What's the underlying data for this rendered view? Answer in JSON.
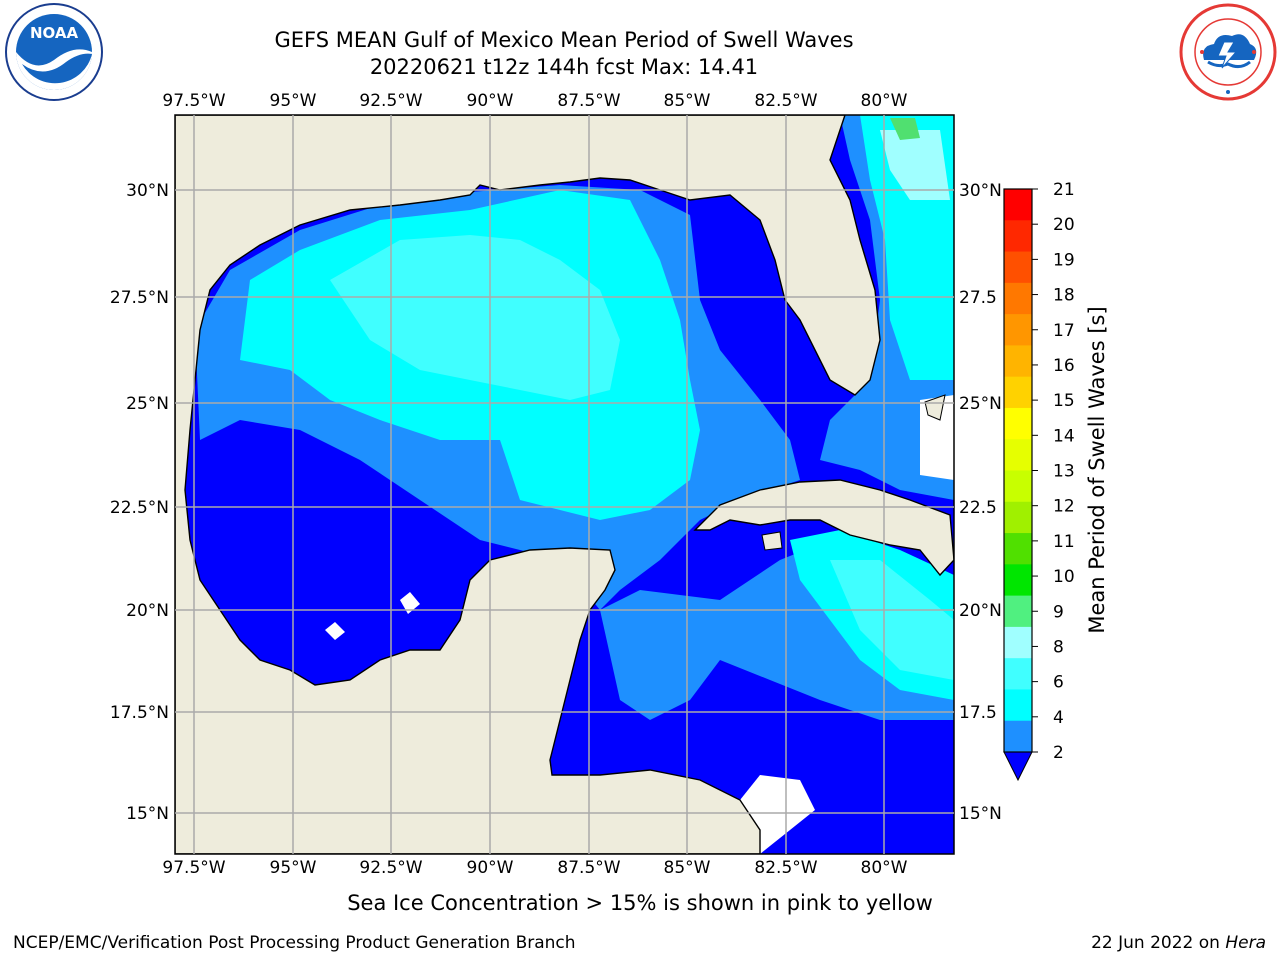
{
  "header": {
    "title_line1": "GEFS MEAN Gulf of Mexico Mean Period of Swell Waves",
    "title_line2": "20220621 t12z 144h fcst   Max: 14.41"
  },
  "logos": {
    "noaa_text": "NOAA",
    "noaa_ring": "NATIONAL OCEANIC AND ATMOSPHERIC ADMINISTRATION · U.S. DEPARTMENT OF COMMERCE",
    "nws_ring": "NATIONAL WEATHER SERVICE"
  },
  "map": {
    "lon_labels": [
      "97.5°W",
      "95°W",
      "92.5°W",
      "90°W",
      "87.5°W",
      "85°W",
      "82.5°W",
      "80°W"
    ],
    "lat_labels_left": [
      "30°N",
      "27.5°N",
      "25°N",
      "22.5°N",
      "20°N",
      "17.5°N",
      "15°N"
    ],
    "lat_labels_right": [
      "30°N",
      "27.5",
      "25°N",
      "22.5",
      "20°N",
      "17.5",
      "15°N"
    ],
    "land_color": "#eeecdc",
    "ocean_colors": {
      "2-4": "#0000ff",
      "4-6": "#1e90ff",
      "6-8": "#00ffff",
      "8-9": "#40ffff",
      "9-10": "#a0ffff",
      "10-11": "#50e070",
      "11-12": "#7ee03c"
    }
  },
  "colorbar": {
    "label": "Mean Period of Swell Waves [s]",
    "ticks": [
      "21",
      "20",
      "19",
      "18",
      "17",
      "16",
      "15",
      "14",
      "13",
      "12",
      "11",
      "10",
      "9",
      "8",
      "6",
      "4",
      "2"
    ],
    "colors": [
      "#ff0000",
      "#ff2800",
      "#ff5000",
      "#ff7800",
      "#ff9600",
      "#ffb400",
      "#ffd200",
      "#ffff00",
      "#e6ff00",
      "#c8ff00",
      "#a0f000",
      "#50e000",
      "#00e600",
      "#50f080",
      "#a0ffff",
      "#40ffff",
      "#00ffff",
      "#1e90ff"
    ],
    "extend_color": "#0000ff"
  },
  "notes": {
    "sea_ice": "Sea Ice Concentration > 15% is shown in pink to yellow",
    "credit": "NCEP/EMC/Verification Post Processing Product Generation Branch",
    "date": "22 Jun 2022 on ",
    "host": "Hera"
  }
}
